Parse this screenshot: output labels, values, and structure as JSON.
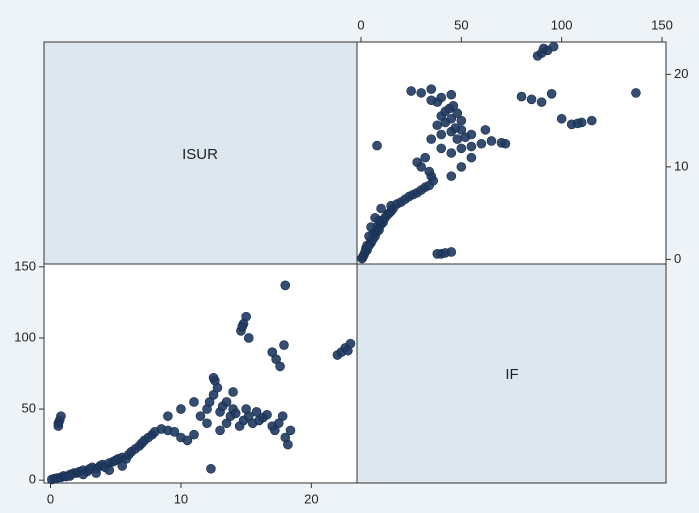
{
  "chart_data": {
    "type": "scatter",
    "color": "#1f3a60",
    "series": [
      {
        "name": "ISUR",
        "lim": [
          -0.5,
          23.5
        ],
        "ticks": [
          0,
          10,
          20
        ],
        "values": [
          0.1,
          0.3,
          0.5,
          0.8,
          1,
          1.2,
          1.5,
          1.8,
          2,
          2.2,
          2.5,
          2.8,
          3,
          3.2,
          3.5,
          3.8,
          4,
          4.2,
          4.5,
          4.8,
          5,
          5.2,
          5.5,
          5.8,
          6,
          6.2,
          6.5,
          6.8,
          7,
          7.2,
          7.5,
          7.8,
          8,
          8.5,
          9,
          9.5,
          10,
          10.5,
          11,
          1.5,
          2.5,
          3.5,
          4.5,
          5.5,
          0.6,
          0.7,
          0.8,
          0.6,
          11.5,
          12,
          12.2,
          12.5,
          12.8,
          13,
          13.2,
          13.5,
          13.8,
          14,
          14.2,
          14.5,
          14.8,
          15,
          15.2,
          15.5,
          15.8,
          16,
          16.3,
          16.6,
          17,
          17.2,
          17.5,
          17.8,
          18,
          18.2,
          18.4,
          12.3,
          13,
          12,
          14,
          12.6,
          13.5,
          11,
          10,
          9,
          14.6,
          14.8,
          15,
          14.7,
          15.2,
          17,
          17.3,
          17.6,
          17.9,
          18,
          22,
          22.3,
          22.6,
          23,
          22.8,
          12.5
        ]
      },
      {
        "name": "IF",
        "lim": [
          -2,
          152
        ],
        "ticks": [
          0,
          50,
          100,
          150
        ],
        "values": [
          0.5,
          1,
          1.5,
          2,
          3,
          2.5,
          4,
          5,
          5,
          6,
          7,
          6,
          8,
          9,
          8,
          10,
          11,
          9,
          12,
          13,
          14,
          15,
          16,
          15,
          18,
          20,
          22,
          24,
          26,
          28,
          30,
          32,
          34,
          36,
          35,
          34,
          30,
          28,
          32,
          3,
          4,
          5,
          7,
          10,
          40,
          42,
          45,
          38,
          45,
          50,
          55,
          60,
          65,
          48,
          52,
          40,
          45,
          50,
          47,
          38,
          42,
          50,
          45,
          40,
          48,
          42,
          44,
          46,
          38,
          35,
          40,
          45,
          30,
          25,
          35,
          8,
          35,
          40,
          62,
          70,
          55,
          55,
          50,
          45,
          105,
          110,
          115,
          108,
          100,
          90,
          85,
          80,
          95,
          137,
          88,
          90,
          93,
          96,
          91,
          72
        ]
      }
    ]
  }
}
